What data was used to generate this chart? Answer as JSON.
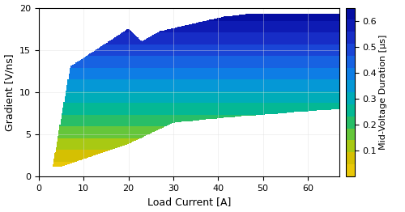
{
  "xlabel": "Load Current [A]",
  "ylabel": "Gradient [V/ns]",
  "colorbar_label": "Mid-Voltage Duration [μs]",
  "xlim": [
    0,
    67
  ],
  "ylim": [
    0,
    20
  ],
  "xticks": [
    0,
    10,
    20,
    30,
    40,
    50,
    60
  ],
  "yticks": [
    0,
    5,
    10,
    15,
    20
  ],
  "vmin": 0.0,
  "vmax": 0.65,
  "colorbar_ticks": [
    0.1,
    0.2,
    0.3,
    0.4,
    0.5,
    0.6
  ],
  "figsize": [
    5.0,
    2.62
  ],
  "dpi": 100,
  "n_levels": 14,
  "colormap_colors": [
    "#f5e800",
    "#e0c000",
    "#c8b400",
    "#90c830",
    "#50c050",
    "#00b878",
    "#00aab0",
    "#0090d0",
    "#0070e0",
    "#0050d8",
    "#0038c8",
    "#0028b0",
    "#001898",
    "#000880"
  ]
}
